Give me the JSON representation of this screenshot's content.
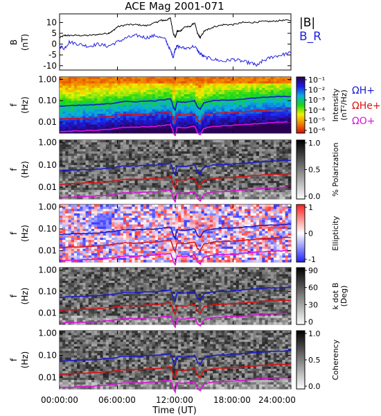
{
  "chart_data": {
    "type": "heatmap",
    "title": "ACE Mag 2001-071",
    "xlabel": "Time (UT)",
    "x_ticks": [
      "00:00:00",
      "06:00:00",
      "12:00:00",
      "18:00:00",
      "24:00:00"
    ],
    "x_range_hours": [
      0,
      24
    ],
    "panels": [
      {
        "id": "field",
        "type": "line",
        "ylabel": "B",
        "yunit": "(nT)",
        "ylim": [
          -12,
          14
        ],
        "yticks": [
          "-10",
          "-5",
          "0",
          "5",
          "10"
        ],
        "series": [
          {
            "name": "|B|",
            "color": "#000000",
            "x": [
              0,
              0.5,
              1,
              2,
              3,
              4,
              5,
              5.5,
              6,
              7,
              8,
              9,
              10,
              10.5,
              11,
              11.5,
              11.8,
              12,
              12.2,
              12.5,
              13,
              13.5,
              14,
              14.3,
              14.6,
              15,
              15.5,
              16,
              17,
              18,
              19,
              20,
              21,
              22,
              23,
              24
            ],
            "values": [
              3,
              4,
              4,
              4,
              4,
              4.5,
              5,
              6,
              8,
              9,
              9,
              8.5,
              10,
              11,
              11,
              12,
              5,
              3,
              6,
              6,
              8,
              8,
              10,
              5,
              3,
              6,
              7,
              8,
              9,
              9,
              10,
              10,
              10.5,
              10.5,
              11,
              11
            ]
          },
          {
            "name": "B_R",
            "color": "#2222dd",
            "x": [
              0,
              0.5,
              1,
              2,
              3,
              4,
              5,
              6,
              7,
              8,
              9,
              10,
              11,
              11.5,
              11.8,
              12,
              12.2,
              13,
              14,
              14.5,
              15,
              16,
              17,
              18,
              19,
              20,
              20.5,
              21,
              22,
              23,
              24
            ],
            "values": [
              -1,
              -2,
              1,
              0,
              -1,
              0,
              -1,
              1,
              3,
              4,
              3,
              4,
              2,
              -3,
              -6,
              -2,
              -1,
              -2,
              -1,
              -4,
              -6,
              -7,
              -8,
              -7,
              -8,
              -9,
              -10,
              -8,
              -6,
              -5,
              -4
            ]
          }
        ],
        "legend": [
          "|B|",
          "B_R"
        ]
      },
      {
        "id": "intensity",
        "type": "heatmap",
        "ylabel": "f",
        "yunit": "(Hz)",
        "yticks": [
          "1.00",
          "0.10",
          "0.01"
        ],
        "ylim": [
          0.003,
          1.3
        ],
        "scale": "log",
        "colorbar": {
          "label": "Intensity",
          "unit": "(nT²/Hz)",
          "ticks": [
            "10⁻¹",
            "10⁻²",
            "10⁻³",
            "10⁻⁴",
            "10⁻⁵",
            "10⁻⁶"
          ],
          "colors": [
            "#2a0050",
            "#1c1ce8",
            "#0aaee0",
            "#18d818",
            "#f0f000",
            "#f08000",
            "#d01010"
          ]
        },
        "legend": [
          {
            "label": "ΩH+",
            "color": "#1a1acc"
          },
          {
            "label": "ΩHe+",
            "color": "#dd1111"
          },
          {
            "label": "ΩO+",
            "color": "#dd11dd"
          }
        ]
      },
      {
        "id": "polarization",
        "type": "heatmap",
        "ylabel": "f",
        "yunit": "(Hz)",
        "yticks": [
          "1.00",
          "0.10",
          "0.01"
        ],
        "colorbar": {
          "label": "% Polarization",
          "ticks": [
            "1.0",
            "0.5",
            "0.0"
          ],
          "colors": [
            "#000000",
            "#ffffff"
          ]
        }
      },
      {
        "id": "ellipticity",
        "type": "heatmap",
        "ylabel": "f",
        "yunit": "(Hz)",
        "yticks": [
          "1.00",
          "0.10",
          "0.01"
        ],
        "colorbar": {
          "label": "Ellipticity",
          "ticks": [
            "1",
            "0",
            "-1"
          ],
          "colors": [
            "#ff2020",
            "#ffffff",
            "#2020ff"
          ]
        }
      },
      {
        "id": "kdotb",
        "type": "heatmap",
        "ylabel": "f",
        "yunit": "(Hz)",
        "yticks": [
          "1.00",
          "0.10",
          "0.01"
        ],
        "colorbar": {
          "label": "k dot B",
          "unit": "(Deg)",
          "ticks": [
            "90",
            "60",
            "30",
            "0"
          ],
          "colors": [
            "#000000",
            "#ffffff"
          ]
        }
      },
      {
        "id": "coherency",
        "type": "heatmap",
        "ylabel": "f",
        "yunit": "(Hz)",
        "yticks": [
          "1.00",
          "0.10",
          "0.01"
        ],
        "colorbar": {
          "label": "Coherency",
          "ticks": [
            "1.0",
            "0.5",
            "0.0"
          ],
          "colors": [
            "#000000",
            "#ffffff"
          ]
        }
      }
    ],
    "gyrofrequency_lines": [
      {
        "name": "ΩH+",
        "color": "#1a1acc",
        "x": [
          0,
          2,
          4,
          5.5,
          6.5,
          8,
          10,
          11.5,
          11.8,
          12,
          12.2,
          13,
          14,
          14.3,
          14.6,
          15,
          16,
          18,
          20,
          22,
          24
        ],
        "values": [
          0.055,
          0.06,
          0.065,
          0.075,
          0.09,
          0.09,
          0.1,
          0.12,
          0.05,
          0.035,
          0.09,
          0.085,
          0.1,
          0.05,
          0.04,
          0.08,
          0.1,
          0.11,
          0.13,
          0.15,
          0.16
        ]
      },
      {
        "name": "ΩHe+",
        "color": "#dd1111",
        "x": [
          0,
          2,
          4,
          5.5,
          6.5,
          8,
          10,
          11.5,
          11.8,
          12,
          12.2,
          13,
          14,
          14.3,
          14.6,
          15,
          16,
          18,
          20,
          22,
          24
        ],
        "values": [
          0.0138,
          0.015,
          0.0163,
          0.0188,
          0.0225,
          0.0225,
          0.025,
          0.03,
          0.0125,
          0.0088,
          0.0225,
          0.0213,
          0.025,
          0.0125,
          0.01,
          0.02,
          0.025,
          0.0275,
          0.0325,
          0.0375,
          0.04
        ]
      },
      {
        "name": "ΩO+",
        "color": "#dd11dd",
        "x": [
          0,
          2,
          4,
          5.5,
          6.5,
          8,
          10,
          11.5,
          11.8,
          12,
          12.2,
          13,
          14,
          14.3,
          14.6,
          15,
          16,
          18,
          20,
          22,
          24
        ],
        "values": [
          0.0034,
          0.0038,
          0.0041,
          0.0047,
          0.0056,
          0.0056,
          0.0063,
          0.0075,
          0.0031,
          0.0022,
          0.0056,
          0.0053,
          0.0063,
          0.0031,
          0.0025,
          0.005,
          0.0063,
          0.0069,
          0.0081,
          0.0094,
          0.01
        ]
      }
    ]
  }
}
